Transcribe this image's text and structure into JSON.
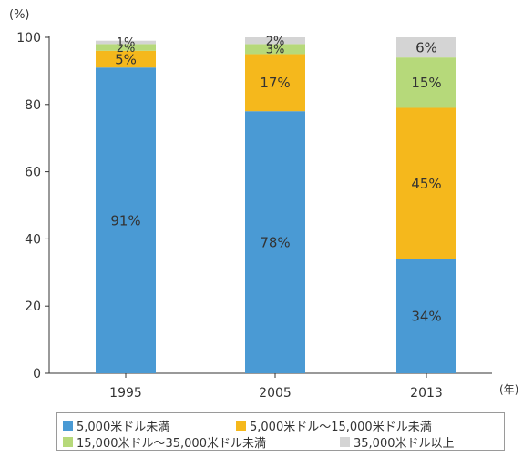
{
  "chart_data": {
    "type": "bar",
    "stacked": true,
    "y_unit_label": "(%)",
    "x_unit_label": "(年)",
    "ylim": [
      0,
      100
    ],
    "yticks": [
      0,
      20,
      40,
      60,
      80,
      100
    ],
    "grid": false,
    "legend_position": "bottom",
    "categories": [
      "1995",
      "2005",
      "2013"
    ],
    "series": [
      {
        "name": "5,000米ドル未満",
        "color": "#4a9ad4",
        "values": [
          91,
          78,
          34
        ],
        "labels": [
          "91%",
          "78%",
          "34%"
        ]
      },
      {
        "name": "5,000米ドル～15,000米ドル未満",
        "color": "#f5b81c",
        "values": [
          5,
          17,
          45
        ],
        "labels": [
          "5%",
          "17%",
          "45%"
        ]
      },
      {
        "name": "15,000米ドル～35,000米ドル未満",
        "color": "#b6d97a",
        "values": [
          2,
          3,
          15
        ],
        "labels": [
          "2%",
          "3%",
          "15%"
        ]
      },
      {
        "name": "35,000米ドル以上",
        "color": "#d4d4d4",
        "values": [
          1,
          2,
          6
        ],
        "labels": [
          "1%",
          "2%",
          "6%"
        ]
      }
    ]
  }
}
